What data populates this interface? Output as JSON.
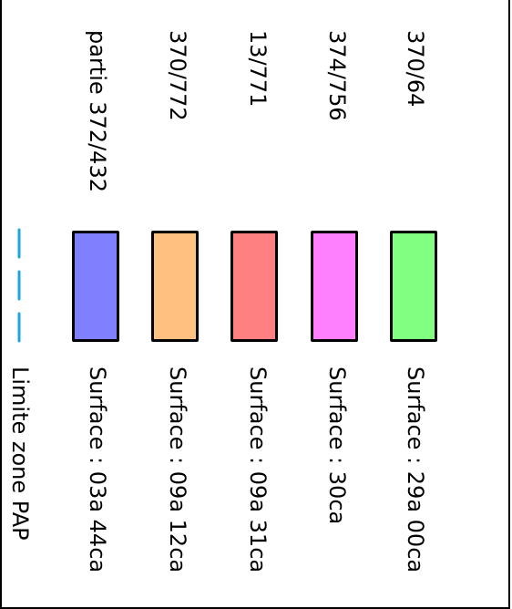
{
  "legend": {
    "items": [
      {
        "parcel": "370/64",
        "surface": "Surface : 29a 00ca",
        "color": "#80ff80"
      },
      {
        "parcel": "374/756",
        "surface": "Surface : 30ca",
        "color": "#ff80ff"
      },
      {
        "parcel": "13/771",
        "surface": "Surface : 09a 31ca",
        "color": "#ff8080"
      },
      {
        "parcel": "370/772",
        "surface": "Surface : 09a 12ca",
        "color": "#ffc080"
      },
      {
        "parcel": "partie 372/432",
        "surface": "Surface : 03a 44ca",
        "color": "#8080ff"
      }
    ],
    "boundary": {
      "label": "Limite zone PAP",
      "color": "#1ba6dc",
      "line_style": "dashed"
    }
  }
}
